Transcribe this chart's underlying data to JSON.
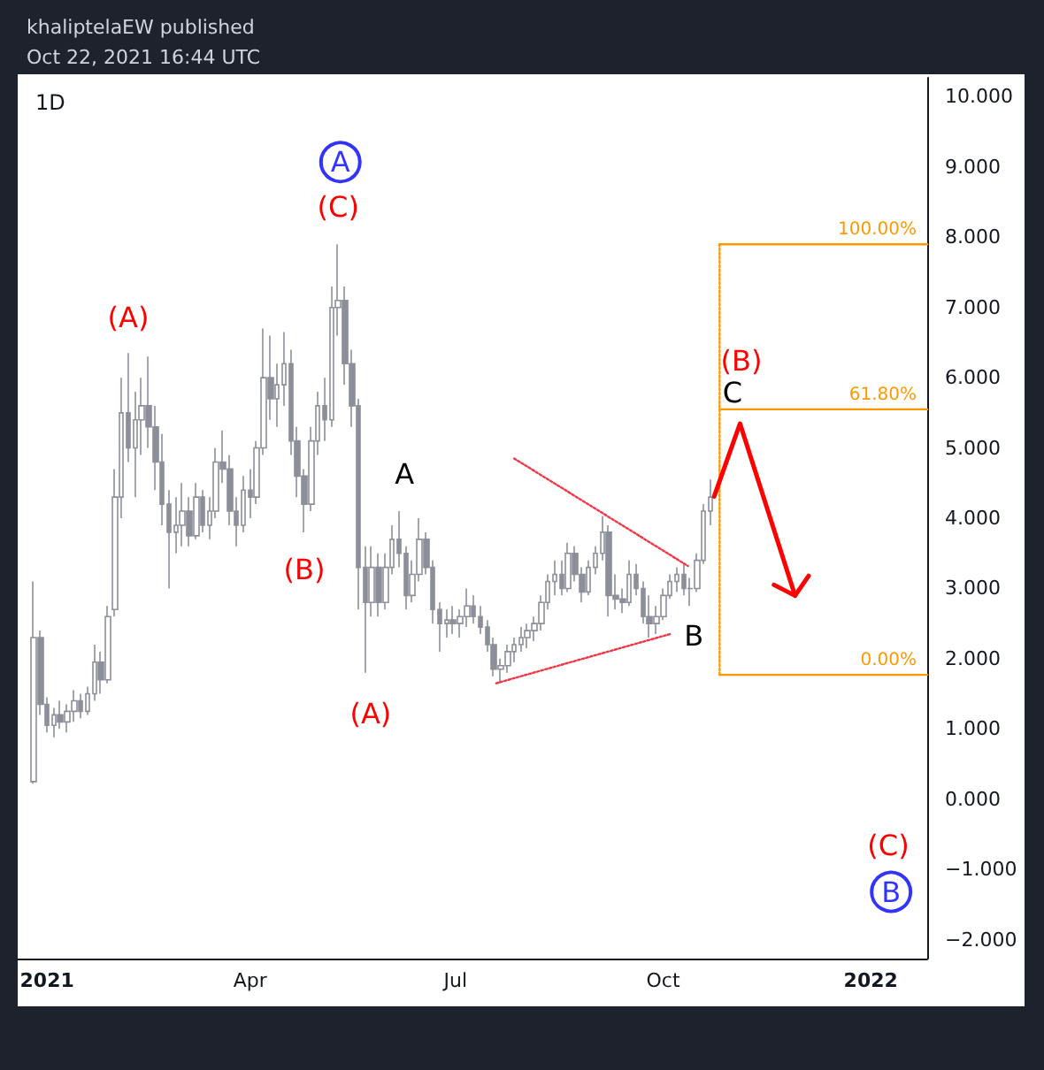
{
  "chart_data": {
    "type": "candlestick",
    "title": "khaliptelaEW published",
    "subtitle": "Oct 22, 2021 16:44 UTC",
    "marker": "none",
    "annotations": [
      "1D",
      {
        "text": "(A)",
        "x": "2021-02-06",
        "y": 6.35
      },
      {
        "text": "(B)",
        "x": "2021-04-25",
        "y": 3.8
      },
      {
        "text": "(C)",
        "x": "2021-05-10",
        "y": 7.9
      },
      {
        "text": "(A)",
        "x": "2021-05-22",
        "y": 1.8
      },
      {
        "text": "A",
        "x": "2021-06-06",
        "y": 4.1
      },
      {
        "text": "B",
        "x": "2021-10-13",
        "y": 2.75
      },
      "(B)",
      "C",
      "(C)"
    ],
    "xlim": [
      "2020-12-19",
      "2022-01-26"
    ],
    "xticks": [
      {
        "value": "2021-01-01",
        "label": "2021"
      },
      {
        "value": "2021-04-01",
        "label": "Apr"
      },
      {
        "value": "2021-07-01",
        "label": "Jul"
      },
      {
        "value": "2021-10-01",
        "label": "Oct"
      },
      {
        "value": "2022-01-01",
        "label": "2022"
      }
    ],
    "ylim": [
      -2.27,
      10.27
    ],
    "yticks": [
      {
        "value": -2,
        "label": "−2.000"
      },
      {
        "value": -1,
        "label": "−1.000"
      },
      {
        "value": 0,
        "label": "0.000"
      },
      {
        "value": 1,
        "label": "1.000"
      },
      {
        "value": 2,
        "label": "2.000"
      },
      {
        "value": 3,
        "label": "3.000"
      },
      {
        "value": 4,
        "label": "4.000"
      },
      {
        "value": 5,
        "label": "5.000"
      },
      {
        "value": 6,
        "label": "6.000"
      },
      {
        "value": 7,
        "label": "7.000"
      },
      {
        "value": 8,
        "label": "8.000"
      },
      {
        "value": 9,
        "label": "9.000"
      },
      {
        "value": 10,
        "label": "10.000"
      }
    ],
    "series": [
      {
        "color": "#8c8f99",
        "x": [
          "2020-12-26",
          "2020-12-29",
          "2021-01-01",
          "2021-01-04",
          "2021-01-07",
          "2021-01-10",
          "2021-01-13",
          "2021-01-16",
          "2021-01-19",
          "2021-01-22",
          "2021-01-25",
          "2021-01-28",
          "2021-01-31",
          "2021-02-03",
          "2021-02-06",
          "2021-02-09",
          "2021-02-12",
          "2021-02-15",
          "2021-02-18",
          "2021-02-21",
          "2021-02-24",
          "2021-02-27",
          "2021-03-02",
          "2021-03-05",
          "2021-03-08",
          "2021-03-11",
          "2021-03-14",
          "2021-03-17",
          "2021-03-20",
          "2021-03-23",
          "2021-03-26",
          "2021-03-29",
          "2021-04-01",
          "2021-04-04",
          "2021-04-07",
          "2021-04-10",
          "2021-04-13",
          "2021-04-16",
          "2021-04-19",
          "2021-04-22",
          "2021-04-25",
          "2021-04-28",
          "2021-05-01",
          "2021-05-04",
          "2021-05-07",
          "2021-05-10",
          "2021-05-13",
          "2021-05-16",
          "2021-05-19",
          "2021-05-22",
          "2021-05-25",
          "2021-05-28",
          "2021-05-31",
          "2021-06-03",
          "2021-06-06",
          "2021-06-09",
          "2021-06-12",
          "2021-06-15",
          "2021-06-18",
          "2021-06-21",
          "2021-06-24",
          "2021-06-27",
          "2021-06-30",
          "2021-07-03",
          "2021-07-06",
          "2021-07-09",
          "2021-07-12",
          "2021-07-15",
          "2021-07-18",
          "2021-07-21",
          "2021-07-24",
          "2021-07-27",
          "2021-07-30",
          "2021-08-02",
          "2021-08-05",
          "2021-08-08",
          "2021-08-11",
          "2021-08-14",
          "2021-08-17",
          "2021-08-20",
          "2021-08-23",
          "2021-08-26",
          "2021-08-29",
          "2021-09-01",
          "2021-09-04",
          "2021-09-07",
          "2021-09-10",
          "2021-09-13",
          "2021-09-16",
          "2021-09-19",
          "2021-09-22",
          "2021-09-25",
          "2021-09-28",
          "2021-10-01",
          "2021-10-04",
          "2021-10-07",
          "2021-10-10",
          "2021-10-13",
          "2021-10-16",
          "2021-10-19",
          "2021-10-22"
        ],
        "ohlc": [
          [
            0.25,
            3.1,
            0.22,
            2.3
          ],
          [
            2.3,
            2.4,
            1.2,
            1.35
          ],
          [
            1.35,
            1.45,
            0.95,
            1.05
          ],
          [
            1.05,
            1.3,
            0.88,
            1.2
          ],
          [
            1.2,
            1.4,
            1.0,
            1.1
          ],
          [
            1.1,
            1.35,
            0.95,
            1.25
          ],
          [
            1.25,
            1.55,
            1.1,
            1.4
          ],
          [
            1.4,
            1.5,
            1.15,
            1.25
          ],
          [
            1.25,
            1.6,
            1.2,
            1.5
          ],
          [
            1.5,
            2.2,
            1.4,
            1.95
          ],
          [
            1.95,
            2.1,
            1.5,
            1.7
          ],
          [
            1.7,
            2.75,
            1.65,
            2.6
          ],
          [
            2.7,
            4.7,
            2.6,
            4.3
          ],
          [
            4.3,
            6.0,
            4.0,
            5.5
          ],
          [
            5.5,
            6.35,
            4.8,
            5.0
          ],
          [
            5.0,
            5.8,
            4.3,
            5.4
          ],
          [
            5.4,
            6.0,
            4.9,
            5.6
          ],
          [
            5.6,
            6.3,
            5.0,
            5.3
          ],
          [
            5.3,
            5.6,
            4.4,
            4.8
          ],
          [
            4.8,
            5.2,
            3.9,
            4.2
          ],
          [
            4.2,
            4.4,
            3.0,
            3.8
          ],
          [
            3.8,
            4.3,
            3.5,
            3.9
          ],
          [
            3.9,
            4.5,
            3.6,
            4.1
          ],
          [
            4.1,
            4.3,
            3.6,
            3.75
          ],
          [
            3.75,
            4.5,
            3.7,
            4.3
          ],
          [
            4.3,
            4.4,
            3.8,
            3.9
          ],
          [
            3.9,
            4.3,
            3.7,
            4.1
          ],
          [
            4.1,
            5.0,
            4.0,
            4.8
          ],
          [
            4.8,
            5.25,
            4.5,
            4.7
          ],
          [
            4.7,
            4.9,
            3.9,
            4.1
          ],
          [
            4.1,
            4.3,
            3.6,
            3.9
          ],
          [
            3.9,
            4.6,
            3.8,
            4.4
          ],
          [
            4.4,
            4.7,
            4.0,
            4.3
          ],
          [
            4.3,
            5.1,
            4.2,
            5.0
          ],
          [
            5.0,
            6.7,
            4.9,
            6.0
          ],
          [
            6.0,
            6.6,
            5.4,
            5.7
          ],
          [
            5.7,
            6.2,
            5.3,
            5.9
          ],
          [
            5.9,
            6.65,
            5.6,
            6.2
          ],
          [
            6.2,
            6.4,
            4.9,
            5.1
          ],
          [
            5.1,
            5.3,
            4.3,
            4.6
          ],
          [
            4.6,
            4.7,
            3.8,
            4.2
          ],
          [
            4.2,
            5.3,
            4.1,
            5.1
          ],
          [
            5.1,
            5.8,
            4.9,
            5.6
          ],
          [
            5.6,
            6.0,
            5.1,
            5.4
          ],
          [
            5.4,
            7.3,
            5.3,
            7.0
          ],
          [
            7.0,
            7.9,
            6.6,
            7.1
          ],
          [
            7.1,
            7.3,
            5.9,
            6.2
          ],
          [
            6.2,
            6.4,
            5.3,
            5.6
          ],
          [
            5.6,
            5.7,
            2.7,
            3.3
          ],
          [
            3.3,
            3.6,
            1.8,
            2.8
          ],
          [
            2.8,
            3.6,
            2.6,
            3.3
          ],
          [
            3.3,
            3.5,
            2.6,
            2.8
          ],
          [
            2.8,
            3.5,
            2.7,
            3.3
          ],
          [
            3.3,
            3.9,
            3.2,
            3.7
          ],
          [
            3.7,
            4.1,
            3.3,
            3.5
          ],
          [
            3.5,
            3.6,
            2.7,
            2.9
          ],
          [
            2.9,
            3.4,
            2.8,
            3.2
          ],
          [
            3.2,
            4.0,
            3.1,
            3.7
          ],
          [
            3.7,
            3.8,
            3.2,
            3.3
          ],
          [
            3.3,
            3.4,
            2.5,
            2.7
          ],
          [
            2.7,
            2.8,
            2.1,
            2.5
          ],
          [
            2.5,
            2.7,
            2.3,
            2.55
          ],
          [
            2.55,
            2.75,
            2.35,
            2.5
          ],
          [
            2.5,
            2.7,
            2.3,
            2.6
          ],
          [
            2.6,
            3.0,
            2.45,
            2.75
          ],
          [
            2.75,
            2.9,
            2.5,
            2.6
          ],
          [
            2.6,
            2.75,
            2.35,
            2.45
          ],
          [
            2.45,
            2.55,
            2.1,
            2.2
          ],
          [
            2.2,
            2.3,
            1.75,
            1.85
          ],
          [
            1.85,
            2.0,
            1.65,
            1.9
          ],
          [
            1.9,
            2.2,
            1.8,
            2.1
          ],
          [
            2.1,
            2.3,
            1.95,
            2.2
          ],
          [
            2.2,
            2.45,
            2.1,
            2.3
          ],
          [
            2.3,
            2.5,
            2.15,
            2.4
          ],
          [
            2.4,
            2.6,
            2.25,
            2.5
          ],
          [
            2.5,
            2.9,
            2.4,
            2.8
          ],
          [
            2.8,
            3.2,
            2.7,
            3.1
          ],
          [
            3.1,
            3.4,
            2.9,
            3.2
          ],
          [
            3.2,
            3.4,
            2.9,
            3.0
          ],
          [
            3.0,
            3.65,
            2.95,
            3.5
          ],
          [
            3.5,
            3.6,
            3.1,
            3.2
          ],
          [
            3.2,
            3.3,
            2.8,
            2.95
          ],
          [
            2.95,
            3.4,
            2.9,
            3.3
          ],
          [
            3.3,
            3.6,
            3.2,
            3.5
          ],
          [
            3.5,
            4.03,
            3.4,
            3.8
          ],
          [
            3.8,
            3.9,
            2.6,
            2.9
          ],
          [
            2.9,
            3.2,
            2.7,
            2.85
          ],
          [
            2.85,
            3.0,
            2.65,
            2.8
          ],
          [
            2.8,
            3.4,
            2.75,
            3.2
          ],
          [
            3.2,
            3.35,
            2.9,
            3.0
          ],
          [
            3.0,
            3.1,
            2.5,
            2.6
          ],
          [
            2.6,
            2.9,
            2.3,
            2.5
          ],
          [
            2.5,
            2.75,
            2.35,
            2.6
          ],
          [
            2.6,
            3.0,
            2.55,
            2.9
          ],
          [
            2.9,
            3.2,
            2.85,
            3.1
          ],
          [
            3.1,
            3.3,
            2.95,
            3.2
          ],
          [
            3.2,
            3.35,
            2.9,
            3.0
          ],
          [
            3.0,
            3.15,
            2.75,
            3.0
          ],
          [
            3.0,
            3.5,
            2.95,
            3.4
          ],
          [
            3.4,
            4.2,
            3.35,
            4.1
          ],
          [
            4.1,
            4.55,
            3.9,
            4.3
          ]
        ]
      },
      {
        "type": "line",
        "name": "100.00%",
        "color": "#ff9800",
        "x": [
          "2021-10-26",
          "2022-01-26"
        ],
        "values": [
          7.9,
          7.9
        ]
      },
      {
        "type": "line",
        "name": "61.80%",
        "color": "#ff9800",
        "x": [
          "2021-10-26",
          "2022-01-26"
        ],
        "values": [
          5.55,
          5.55
        ]
      },
      {
        "type": "line",
        "name": "0.00%",
        "color": "#ff9800",
        "x": [
          "2021-10-26",
          "2022-01-26"
        ],
        "values": [
          1.77,
          1.77
        ]
      },
      {
        "type": "line",
        "color": "#ff9800",
        "line_style": "dotted",
        "x": [
          "2021-10-26",
          "2021-10-26"
        ],
        "values": [
          1.77,
          7.9
        ]
      },
      {
        "type": "line",
        "color": "#f23645",
        "line_style": "dotted",
        "x": [
          "2021-07-27",
          "2021-10-12"
        ],
        "values": [
          4.85,
          3.32
        ]
      },
      {
        "type": "line",
        "color": "#f23645",
        "line_style": "dotted",
        "x": [
          "2021-07-19",
          "2021-10-04"
        ],
        "values": [
          1.65,
          2.35
        ]
      },
      {
        "type": "scatter",
        "color": "#0000ff",
        "marker": "circle",
        "x": [
          "2021-05-11",
          "2022-01-10"
        ],
        "values": [
          9.07,
          -1.32
        ],
        "value_labels": [
          "A",
          "B"
        ]
      }
    ]
  }
}
